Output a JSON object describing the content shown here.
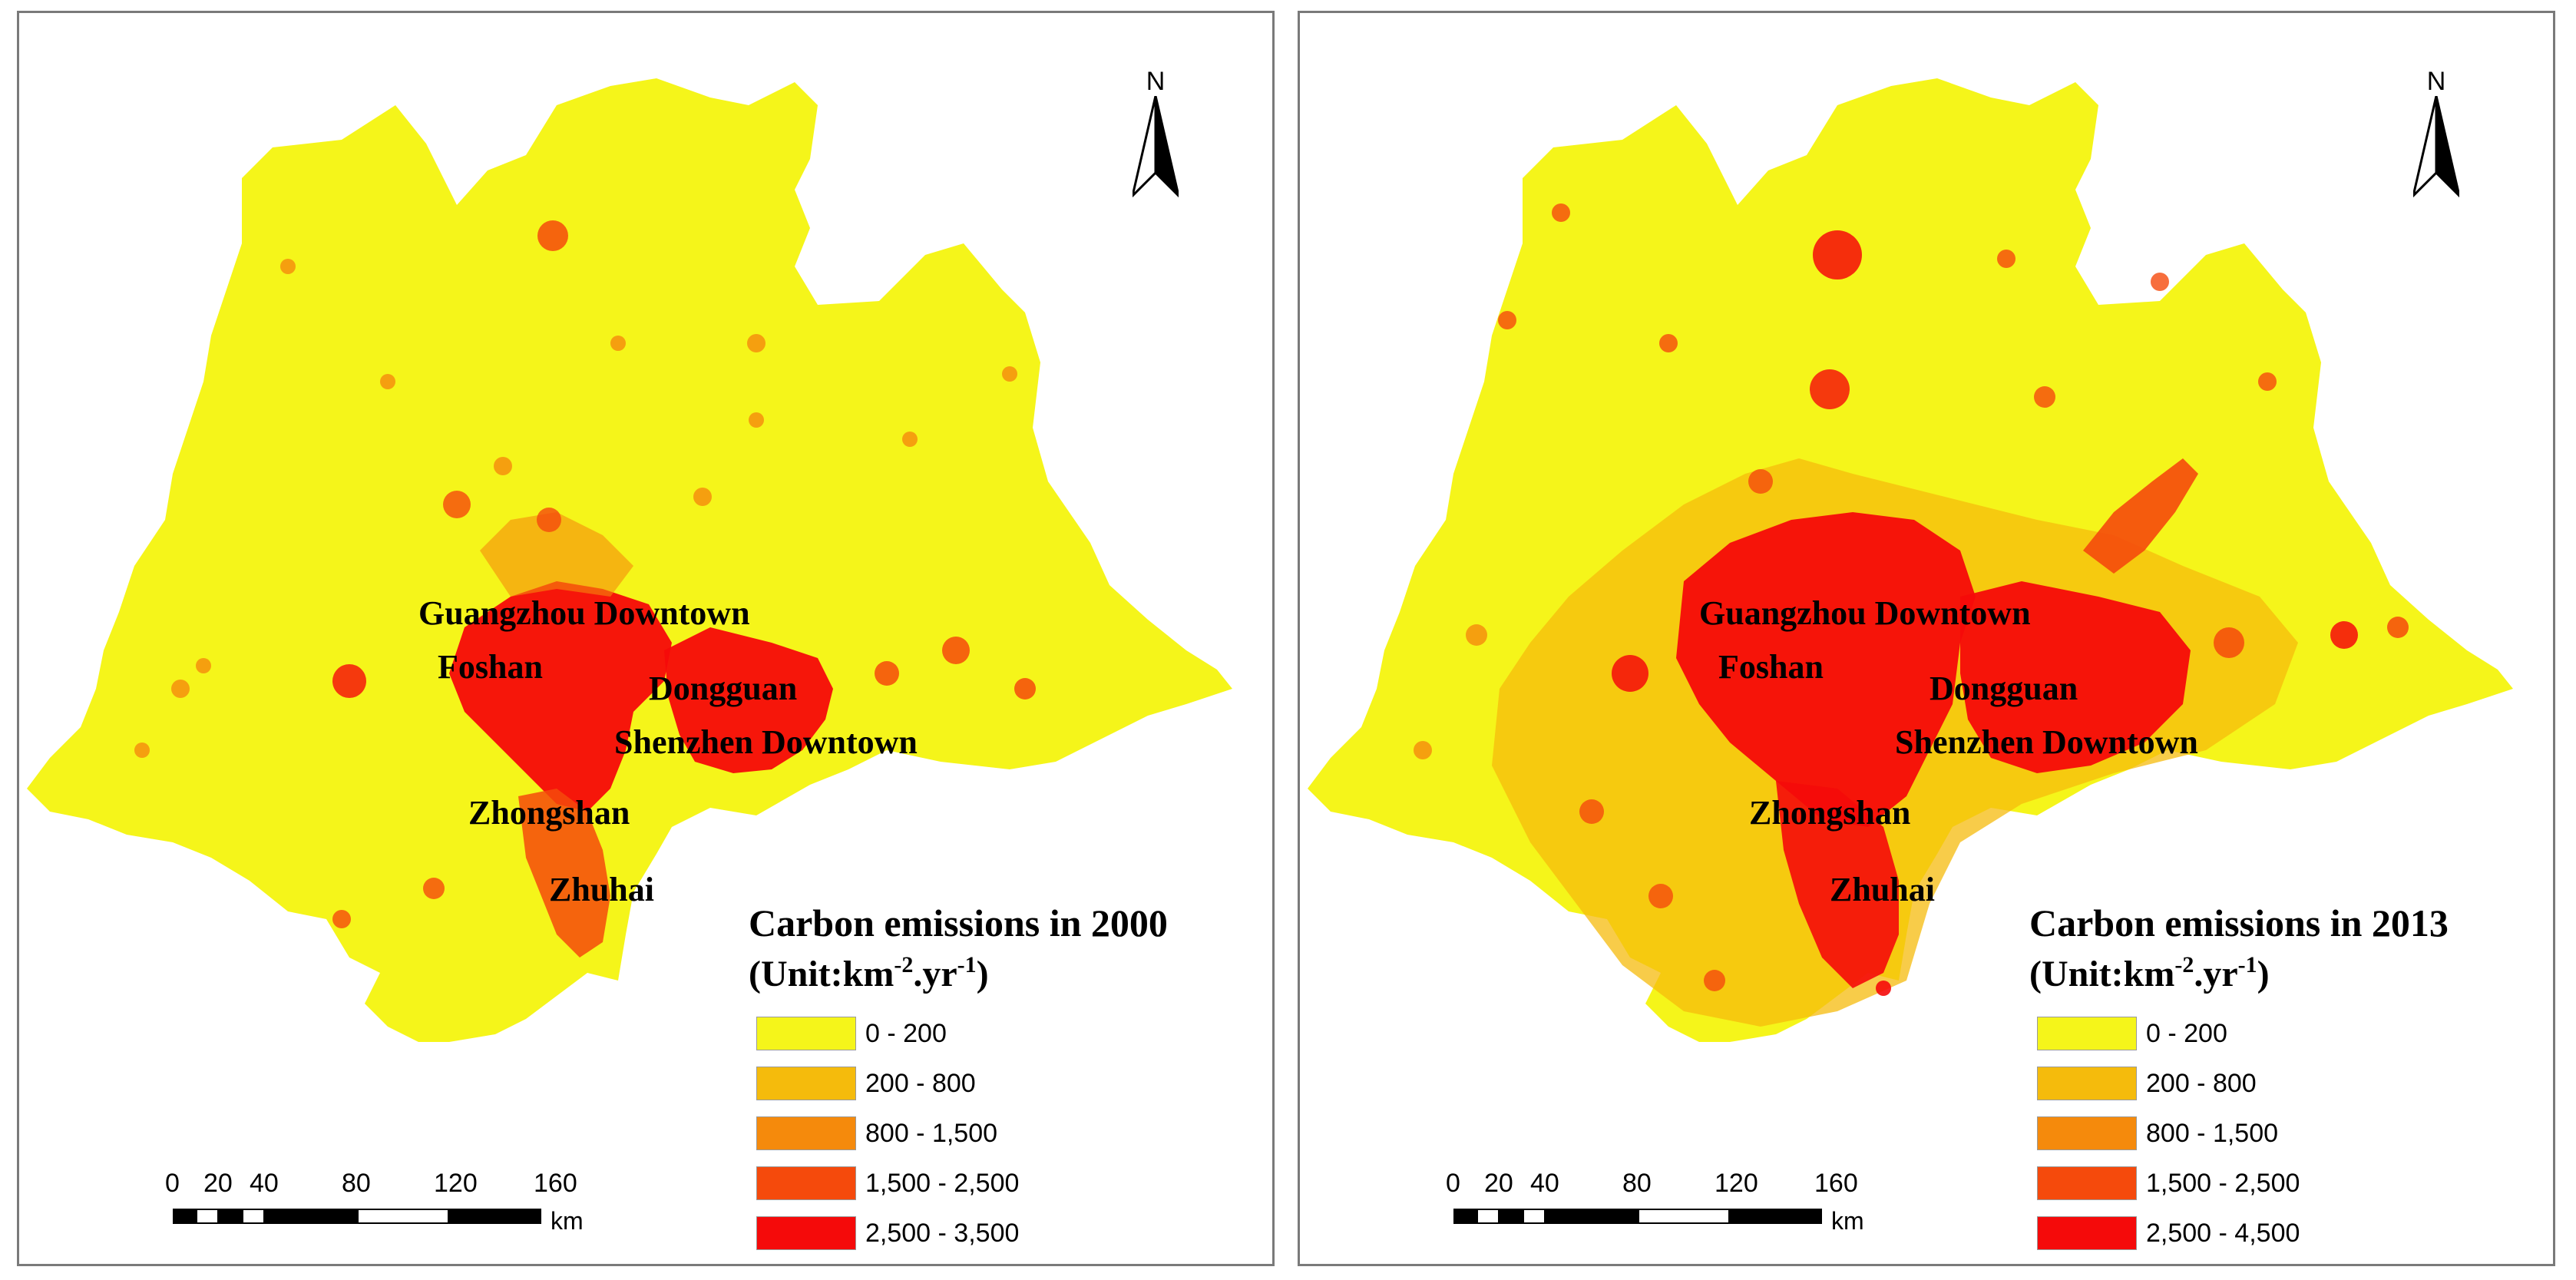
{
  "colors": {
    "class_0_200": "#f5f51a",
    "class_200_800": "#f5bb0c",
    "class_800_1500": "#f58a0c",
    "class_1500_2500": "#f54a0c",
    "class_2500_max": "#f50a0a",
    "frame": "#7a7a7a"
  },
  "north_arrow": {
    "letter": "N"
  },
  "cities": [
    "Guangzhou Downtown",
    "Foshan",
    "Dongguan",
    "Shenzhen Downtown",
    "Zhongshan",
    "Zhuhai"
  ],
  "panels": [
    {
      "legend_title": "Carbon emissions in 2000",
      "legend_unit": {
        "prefix": "(Unit:km",
        "exp1": "-2",
        "mid": ".yr",
        "exp2": "-1",
        "suffix": ")"
      },
      "classes": [
        "0 - 200",
        "200 - 800",
        "800 - 1,500",
        "1,500 - 2,500",
        "2,500 - 3,500"
      ]
    },
    {
      "legend_title": "Carbon emissions in 2013",
      "legend_unit": {
        "prefix": "(Unit:km",
        "exp1": "-2",
        "mid": ".yr",
        "exp2": "-1",
        "suffix": ")"
      },
      "classes": [
        "0 - 200",
        "200 - 800",
        "800 - 1,500",
        "1,500 - 2,500",
        "2,500 - 4,500"
      ]
    }
  ],
  "scale_bar": {
    "ticks": [
      "0",
      "20",
      "40",
      "80",
      "120",
      "160"
    ],
    "unit": "km"
  }
}
